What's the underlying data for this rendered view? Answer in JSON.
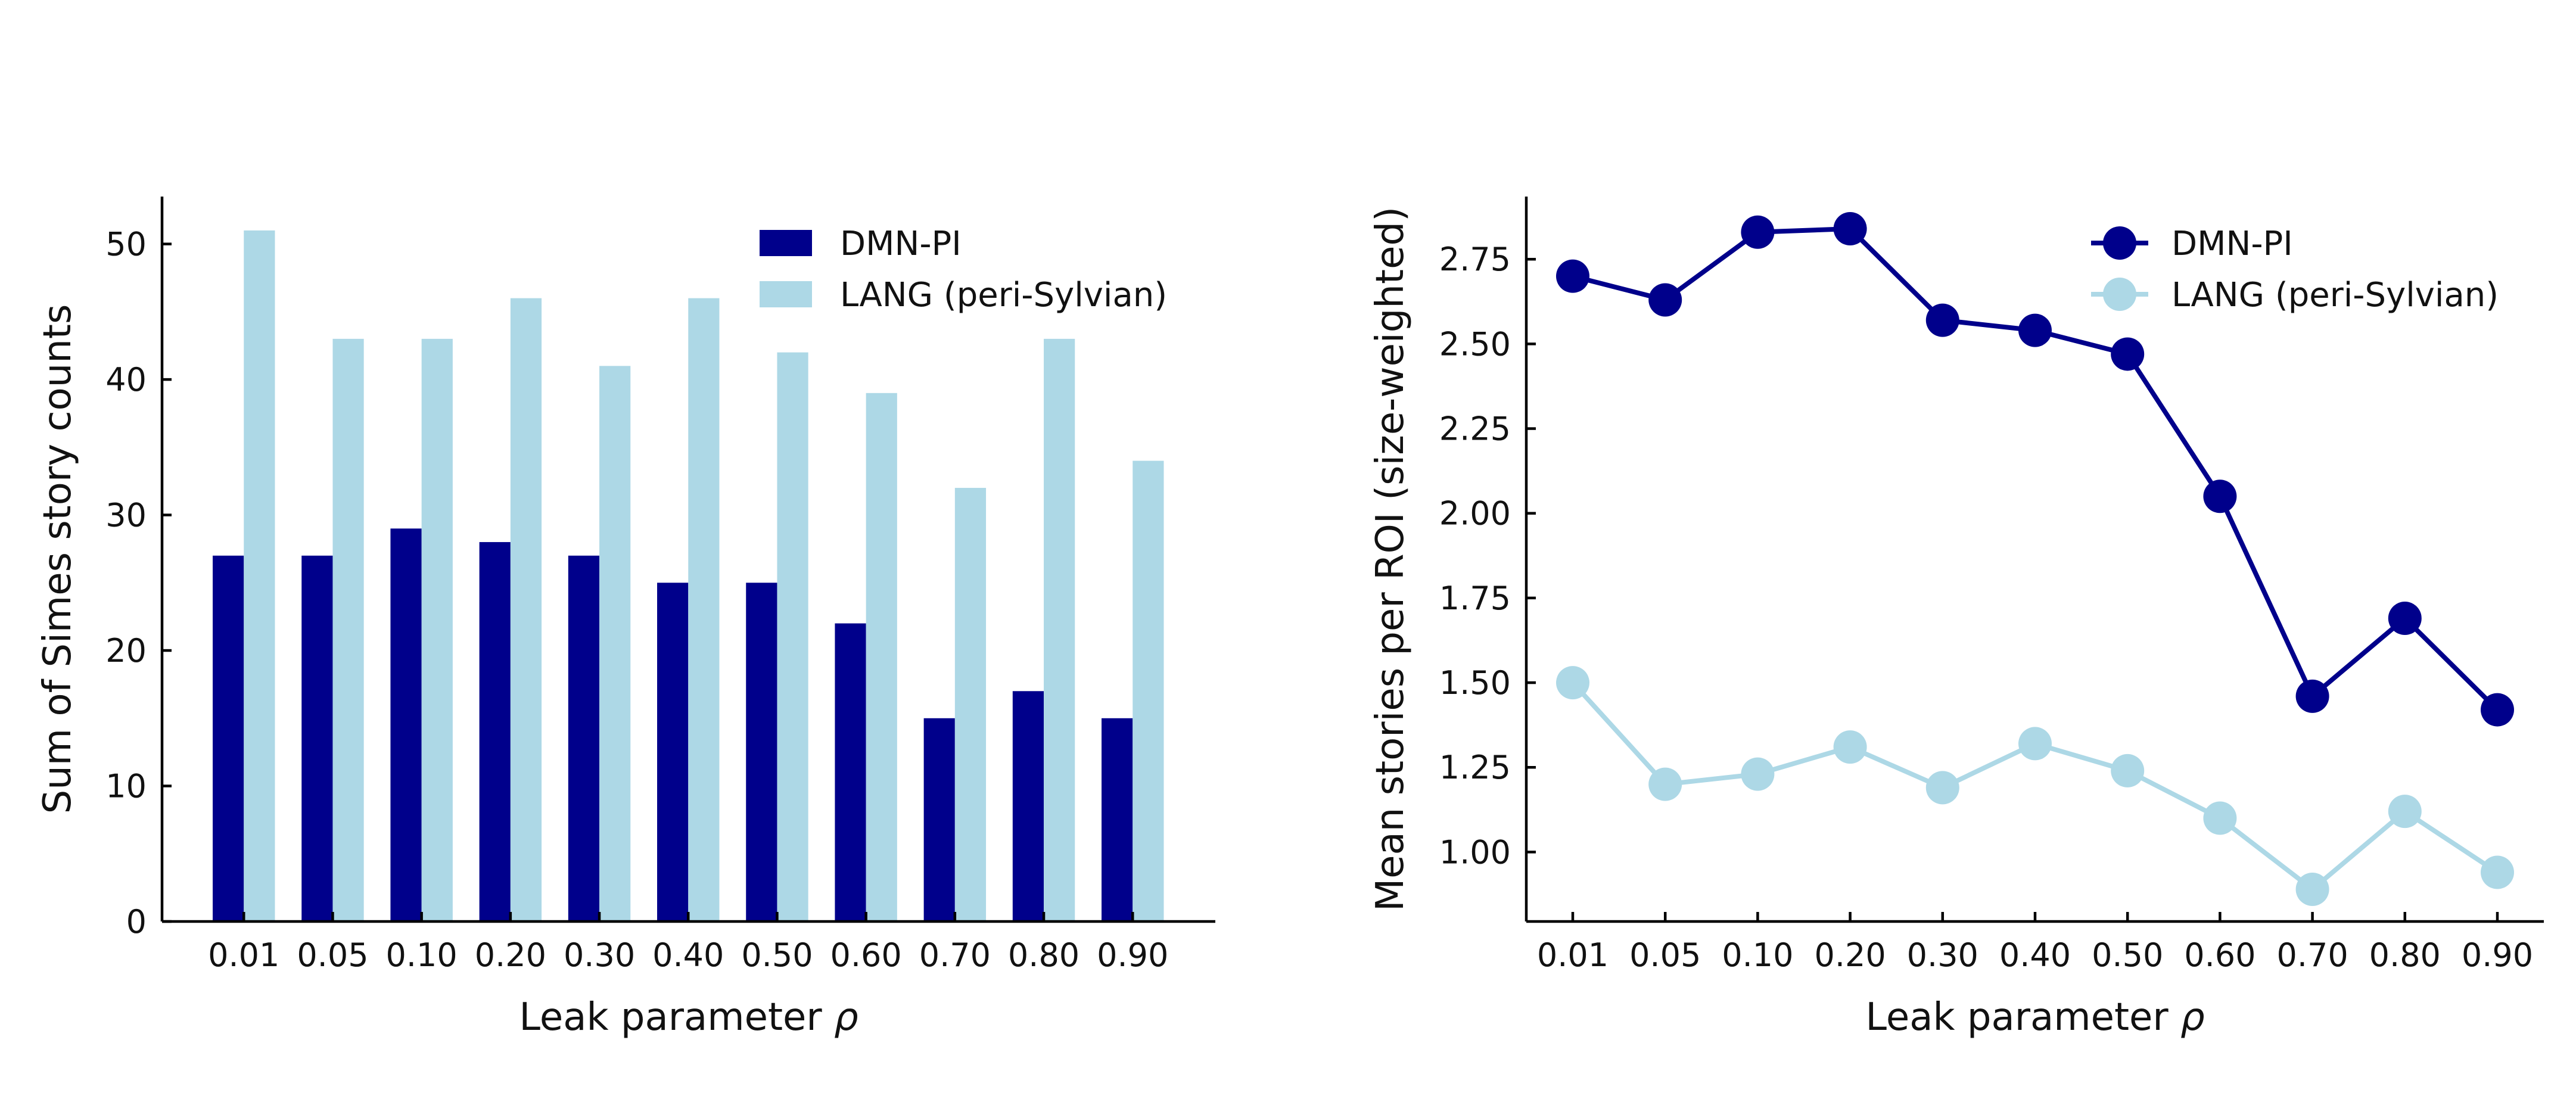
{
  "chart_data": [
    {
      "type": "bar",
      "categories": [
        "0.01",
        "0.05",
        "0.10",
        "0.20",
        "0.30",
        "0.40",
        "0.50",
        "0.60",
        "0.70",
        "0.80",
        "0.90"
      ],
      "series": [
        {
          "name": "DMN-PI",
          "color": "#00008b",
          "values": [
            27,
            27,
            29,
            28,
            27,
            25,
            25,
            22,
            15,
            17,
            15
          ]
        },
        {
          "name": "LANG (peri-Sylvian)",
          "color": "#add8e6",
          "values": [
            51,
            43,
            43,
            46,
            41,
            46,
            42,
            39,
            32,
            43,
            34
          ]
        }
      ],
      "xlabel_prefix": "Leak parameter ",
      "xlabel_symbol": "ρ",
      "ylabel": "Sum of Simes story counts",
      "ylim": [
        0,
        53.5
      ],
      "yticks": [
        0,
        10,
        20,
        30,
        40,
        50
      ],
      "legend": "top-right"
    },
    {
      "type": "line",
      "categories": [
        "0.01",
        "0.05",
        "0.10",
        "0.20",
        "0.30",
        "0.40",
        "0.50",
        "0.60",
        "0.70",
        "0.80",
        "0.90"
      ],
      "series": [
        {
          "name": "DMN-PI",
          "color": "#00008b",
          "values": [
            2.7,
            2.63,
            2.83,
            2.84,
            2.57,
            2.54,
            2.47,
            2.05,
            1.46,
            1.69,
            1.42
          ]
        },
        {
          "name": "LANG (peri-Sylvian)",
          "color": "#add8e6",
          "values": [
            1.5,
            1.2,
            1.23,
            1.31,
            1.19,
            1.32,
            1.24,
            1.1,
            0.89,
            1.12,
            0.94
          ]
        }
      ],
      "xlabel_prefix": "Leak parameter ",
      "xlabel_symbol": "ρ",
      "ylabel": "Mean stories per ROI (size-weighted)",
      "ylim": [
        0.795,
        2.935
      ],
      "yticks": [
        "1.00",
        "1.25",
        "1.50",
        "1.75",
        "2.00",
        "2.25",
        "2.50",
        "2.75"
      ],
      "legend": "top-right"
    }
  ]
}
